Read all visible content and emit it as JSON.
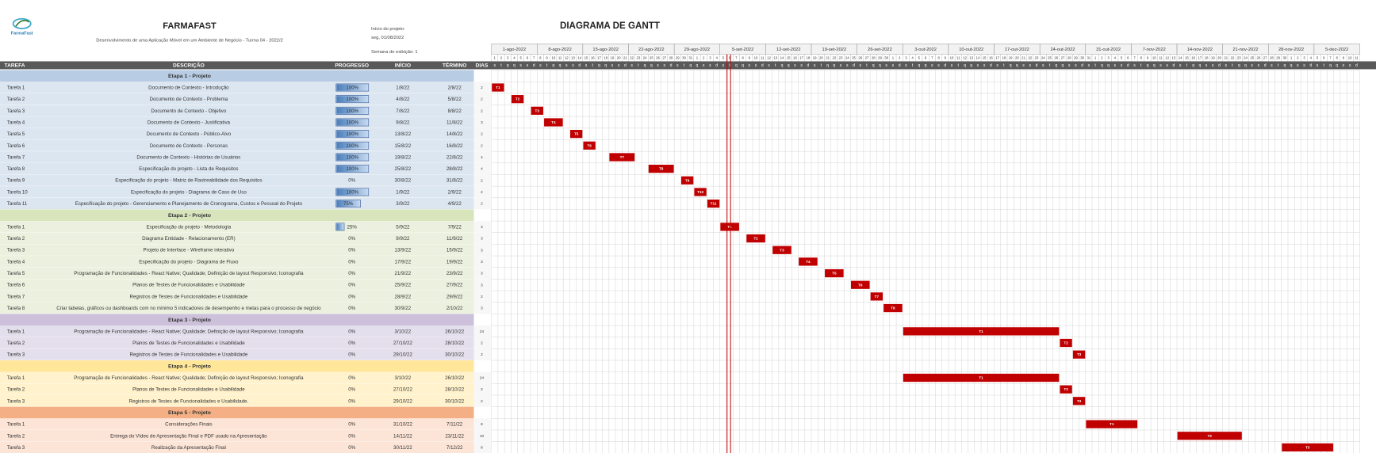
{
  "header": {
    "logo_text": "FarmaFast",
    "title": "FARMAFAST",
    "subtitle": "Desenvolvimento de uma Aplicação Móvel em um Ambiente de Negócio - Turma 04 - 2022/2",
    "start_label": "Início do projeto:",
    "start_date": "seg, 01/08/2022",
    "week_label": "Semana de exibição: 1",
    "gantt_title": "DIAGRAMA DE GANTT"
  },
  "columns": [
    "TAREFA",
    "DESCRIÇÃO",
    "PROGRESSO",
    "INÍCIO",
    "TÉRMINO",
    "DIAS"
  ],
  "timeline": {
    "weeks": [
      "1-ago-2022",
      "8-ago-2022",
      "15-ago-2022",
      "22-ago-2022",
      "29-ago-2022",
      "5-set-2022",
      "12-set-2022",
      "19-set-2022",
      "26-set-2022",
      "3-out-2022",
      "10-out-2022",
      "17-out-2022",
      "24-out-2022",
      "31-out-2022",
      "7-nov-2022",
      "14-nov-2022",
      "21-nov-2022",
      "28-nov-2022",
      "5-dez-2022"
    ],
    "days": [
      1,
      2,
      3,
      4,
      5,
      6,
      7,
      8,
      9,
      10,
      11,
      12,
      13,
      14,
      15,
      16,
      17,
      18,
      19,
      20,
      21,
      22,
      23,
      24,
      25,
      26,
      27,
      28,
      29,
      30,
      31,
      1,
      2,
      3,
      4,
      5,
      6,
      7,
      8,
      9,
      10,
      11,
      12,
      13,
      14,
      15,
      16,
      17,
      18,
      19,
      20,
      21,
      22,
      23,
      24,
      25,
      26,
      27,
      28,
      29,
      30,
      1,
      2,
      3,
      4,
      5,
      6,
      7,
      8,
      9,
      10,
      11,
      12,
      13,
      14,
      15,
      16,
      17,
      18,
      19,
      20,
      21,
      22,
      23,
      24,
      25,
      26,
      27,
      28,
      29,
      30,
      31,
      1,
      2,
      3,
      4,
      5,
      6,
      7,
      8,
      9,
      10,
      11,
      12,
      13,
      14,
      15,
      16,
      17,
      18,
      19,
      20,
      21,
      22,
      23,
      24,
      25,
      26,
      27,
      28,
      29,
      30,
      1,
      2,
      3,
      4,
      5,
      6,
      7,
      8,
      9,
      10,
      11
    ],
    "weekdays": [
      "s",
      "t",
      "q",
      "q",
      "s",
      "s",
      "d",
      "s",
      "t",
      "q",
      "q",
      "s",
      "s",
      "d",
      "s",
      "t",
      "q",
      "q",
      "s",
      "s",
      "d",
      "s",
      "t",
      "q",
      "q",
      "s",
      "s",
      "d",
      "s",
      "t",
      "q",
      "q",
      "s",
      "s",
      "d",
      "s",
      "t",
      "q",
      "q",
      "s",
      "s",
      "d",
      "s",
      "t",
      "q",
      "q",
      "s",
      "s",
      "d",
      "s",
      "t",
      "q",
      "q",
      "s",
      "s",
      "d",
      "s",
      "t",
      "q",
      "q",
      "s",
      "s",
      "d",
      "s",
      "t",
      "q",
      "q",
      "s",
      "s",
      "d",
      "s",
      "t",
      "q",
      "q",
      "s",
      "s",
      "d",
      "s",
      "t",
      "q",
      "q",
      "s",
      "s",
      "d",
      "s",
      "t",
      "q",
      "q",
      "s",
      "s",
      "d",
      "s",
      "t",
      "q",
      "q",
      "s",
      "s",
      "d",
      "s",
      "t",
      "q",
      "q",
      "s",
      "s",
      "d",
      "s",
      "t",
      "q",
      "q",
      "s",
      "s",
      "d",
      "s",
      "t",
      "q",
      "q",
      "s",
      "s",
      "d",
      "s",
      "t",
      "q",
      "q",
      "s",
      "s",
      "d",
      "s",
      "t",
      "q",
      "q",
      "s",
      "s",
      "d"
    ]
  },
  "stages": [
    {
      "title": "Etapa 1 - Projeto",
      "tasks": [
        {
          "task": "Tarefa 1",
          "description": "Documento de Contexto - Introdução",
          "progress": 100,
          "progress_label": "100%",
          "start": "1/8/22",
          "end": "2/8/22",
          "days": 2,
          "bar_label": "T1"
        },
        {
          "task": "Tarefa 2",
          "description": "Documento de Contexto - Problema",
          "progress": 100,
          "progress_label": "100%",
          "start": "4/8/22",
          "end": "5/8/22",
          "days": 2,
          "bar_label": "T2"
        },
        {
          "task": "Tarefa 3",
          "description": "Documento de Contexto - Objetivo",
          "progress": 100,
          "progress_label": "100%",
          "start": "7/8/22",
          "end": "8/8/22",
          "days": 2,
          "bar_label": "T3"
        },
        {
          "task": "Tarefa 4",
          "description": "Documento de Contexto - Justificativa",
          "progress": 100,
          "progress_label": "100%",
          "start": "9/8/22",
          "end": "11/8/22",
          "days": 3,
          "bar_label": "T4"
        },
        {
          "task": "Tarefa 5",
          "description": "Documento de Contexto - Público-Alvo",
          "progress": 100,
          "progress_label": "100%",
          "start": "13/8/22",
          "end": "14/8/22",
          "days": 2,
          "bar_label": "T5"
        },
        {
          "task": "Tarefa 6",
          "description": "Documento de Contexto - Personas",
          "progress": 100,
          "progress_label": "100%",
          "start": "15/8/22",
          "end": "16/8/22",
          "days": 2,
          "bar_label": "T6"
        },
        {
          "task": "Tarefa 7",
          "description": "Documento de Contexto - Histórias de Usuários",
          "progress": 100,
          "progress_label": "100%",
          "start": "19/8/22",
          "end": "22/8/22",
          "days": 4,
          "bar_label": "T7"
        },
        {
          "task": "Tarefa 8",
          "description": "Especificação do projeto - Lista de Requisitos",
          "progress": 100,
          "progress_label": "100%",
          "start": "25/8/22",
          "end": "28/8/22",
          "days": 4,
          "bar_label": "T8"
        },
        {
          "task": "Tarefa 9",
          "description": "Especificação do projeto - Matriz de Rastreabilidade dos Requisitos",
          "progress": 0,
          "progress_label": "0%",
          "start": "30/8/22",
          "end": "31/8/22",
          "days": 2,
          "bar_label": "T9"
        },
        {
          "task": "Tarefa 10",
          "description": "Especificação do projeto - Diagrama de Caso de Uso",
          "progress": 100,
          "progress_label": "100%",
          "start": "1/9/22",
          "end": "2/9/22",
          "days": 2,
          "bar_label": "T10"
        },
        {
          "task": "Tarefa 11",
          "description": "Especificação do projeto - Gerenciamento e Planejamento de Cronograma, Custos e Pessoal do Projeto",
          "progress": 75,
          "progress_label": "75%",
          "start": "3/9/22",
          "end": "4/9/22",
          "days": 2,
          "bar_label": "T11"
        }
      ]
    },
    {
      "title": "Etapa 2 - Projeto",
      "tasks": [
        {
          "task": "Tarefa 1",
          "description": "Especificação do projeto - Metodologia",
          "progress": 25,
          "progress_label": "25%",
          "start": "5/9/22",
          "end": "7/9/22",
          "days": 3,
          "bar_label": "T1"
        },
        {
          "task": "Tarefa 2",
          "description": "Diagrama Entidade - Relacionamento (ER)",
          "progress": 0,
          "progress_label": "0%",
          "start": "9/9/22",
          "end": "11/9/22",
          "days": 3,
          "bar_label": "T2"
        },
        {
          "task": "Tarefa 3",
          "description": "Projeto de Interface - Wireframe interativo",
          "progress": 0,
          "progress_label": "0%",
          "start": "13/9/22",
          "end": "15/9/22",
          "days": 3,
          "bar_label": "T3"
        },
        {
          "task": "Tarefa 4",
          "description": "Especificação do projeto - Diagrama de Fluxo",
          "progress": 0,
          "progress_label": "0%",
          "start": "17/9/22",
          "end": "19/9/22",
          "days": 3,
          "bar_label": "T4"
        },
        {
          "task": "Tarefa 5",
          "description": "Programação de Funcionalidades - React Native; Qualidade; Definição de layout Responsivo; Iconografia",
          "progress": 0,
          "progress_label": "0%",
          "start": "21/9/22",
          "end": "23/9/22",
          "days": 3,
          "bar_label": "T5"
        },
        {
          "task": "Tarefa 6",
          "description": "Planos de Testes de Funcionalidades  e Usabilidade",
          "progress": 0,
          "progress_label": "0%",
          "start": "25/9/22",
          "end": "27/9/22",
          "days": 3,
          "bar_label": "T6"
        },
        {
          "task": "Tarefa 7",
          "description": "Registros de Testes de Funcionalidades  e Usabilidade",
          "progress": 0,
          "progress_label": "0%",
          "start": "28/9/22",
          "end": "29/9/22",
          "days": 2,
          "bar_label": "T7"
        },
        {
          "task": "Tarefa 8",
          "description": "Criar tabelas, gráficos ou dashboards com no mínimo 5 indicadores de desempenho e metas para o processo de negócio",
          "progress": 0,
          "progress_label": "0%",
          "start": "30/9/22",
          "end": "2/10/22",
          "days": 3,
          "bar_label": "T8"
        }
      ]
    },
    {
      "title": "Etapa 3 - Projeto",
      "tasks": [
        {
          "task": "Tarefa 1",
          "description": "Programação de Funcionalidades - React Native; Qualidade; Definição de layout Responsivo; Iconografia",
          "progress": 0,
          "progress_label": "0%",
          "start": "3/10/22",
          "end": "26/10/22",
          "days": 24,
          "bar_label": "T1"
        },
        {
          "task": "Tarefa 2",
          "description": "Planos de Testes de Funcionalidades  e Usabilidade",
          "progress": 0,
          "progress_label": "0%",
          "start": "27/10/22",
          "end": "28/10/22",
          "days": 2,
          "bar_label": "T2"
        },
        {
          "task": "Tarefa 3",
          "description": "Registros de Testes de Funcionalidades  e Usabilidade",
          "progress": 0,
          "progress_label": "0%",
          "start": "29/10/22",
          "end": "30/10/22",
          "days": 2,
          "bar_label": "T3"
        }
      ]
    },
    {
      "title": "Etapa 4 - Projeto",
      "tasks": [
        {
          "task": "Tarefa 1",
          "description": "Programação de Funcionalidades - React Native; Qualidade; Definição de layout Responsivo; Iconografia",
          "progress": 0,
          "progress_label": "0%",
          "start": "3/10/22",
          "end": "26/10/22",
          "days": 24,
          "bar_label": "T1"
        },
        {
          "task": "Tarefa 2",
          "description": "Planos de Testes de Funcionalidades  e Usabilidade",
          "progress": 0,
          "progress_label": "0%",
          "start": "27/10/22",
          "end": "28/10/22",
          "days": 2,
          "bar_label": "T2"
        },
        {
          "task": "Tarefa 3",
          "description": "Registros de Testes de Funcionalidades  e Usabilidade.",
          "progress": 0,
          "progress_label": "0%",
          "start": "29/10/22",
          "end": "30/10/22",
          "days": 2,
          "bar_label": "T3"
        }
      ]
    },
    {
      "title": "Etapa 5 - Projeto",
      "tasks": [
        {
          "task": "Tarefa 1",
          "description": "Considerações Finais",
          "progress": 0,
          "progress_label": "0%",
          "start": "31/10/22",
          "end": "7/11/22",
          "days": 8,
          "bar_label": "T1"
        },
        {
          "task": "Tarefa 2",
          "description": "Entrega do Vídeo de Apresentação Final e PDF usado na Apresentação",
          "progress": 0,
          "progress_label": "0%",
          "start": "14/11/22",
          "end": "23/11/22",
          "days": 10,
          "bar_label": "T2"
        },
        {
          "task": "Tarefa 3",
          "description": "Realização da Apresentação Final",
          "progress": 0,
          "progress_label": "0%",
          "start": "30/11/22",
          "end": "7/12/22",
          "days": 8,
          "bar_label": "T3"
        }
      ]
    }
  ]
}
